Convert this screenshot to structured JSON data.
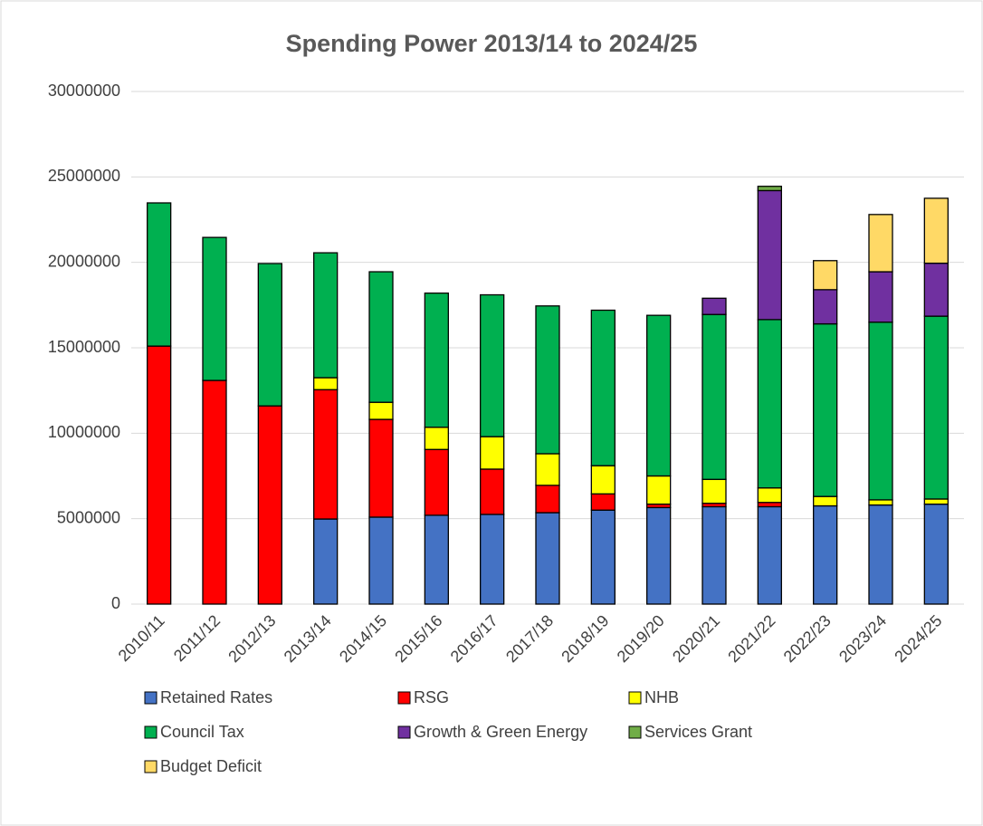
{
  "chart_data": {
    "type": "stacked_bar",
    "title": "Spending Power 2013/14 to 2024/25",
    "categories": [
      "2010/11",
      "2011/12",
      "2012/13",
      "2013/14",
      "2014/15",
      "2015/16",
      "2016/17",
      "2017/18",
      "2018/19",
      "2019/20",
      "2020/21",
      "2021/22",
      "2022/23",
      "2023/24",
      "2024/25"
    ],
    "series": [
      {
        "name": "Retained Rates",
        "color": "#4472c4",
        "values": [
          null,
          null,
          null,
          4980000,
          5090000,
          5200000,
          5250000,
          5350000,
          5500000,
          5650000,
          5700000,
          5700000,
          5750000,
          5800000,
          5850000
        ]
      },
      {
        "name": "RSG",
        "color": "#ff0000",
        "values": [
          15100000,
          13090000,
          11600000,
          7570000,
          5720000,
          3850000,
          2650000,
          1600000,
          950000,
          200000,
          200000,
          250000,
          null,
          null,
          null
        ]
      },
      {
        "name": "NHB",
        "color": "#ffff00",
        "values": [
          null,
          null,
          null,
          700000,
          1000000,
          1300000,
          1900000,
          1850000,
          1650000,
          1650000,
          1400000,
          850000,
          550000,
          300000,
          300000
        ]
      },
      {
        "name": "Council Tax",
        "color": "#00b050",
        "values": [
          8380000,
          8370000,
          8330000,
          7310000,
          7640000,
          7850000,
          8300000,
          8650000,
          9100000,
          9400000,
          9650000,
          9850000,
          10100000,
          10400000,
          10700000
        ]
      },
      {
        "name": "Growth & Green Energy",
        "color": "#7030a0",
        "values": [
          null,
          null,
          null,
          null,
          null,
          null,
          null,
          null,
          null,
          null,
          950000,
          7550000,
          2000000,
          2950000,
          3100000
        ]
      },
      {
        "name": "Services Grant",
        "color": "#70ad47",
        "values": [
          null,
          null,
          null,
          null,
          null,
          null,
          null,
          null,
          null,
          null,
          null,
          250000,
          null,
          null,
          null
        ]
      },
      {
        "name": "Budget Deficit",
        "color": "#ffd966",
        "values": [
          null,
          null,
          null,
          null,
          null,
          null,
          null,
          null,
          null,
          null,
          null,
          null,
          1700000,
          3350000,
          3800000
        ]
      }
    ],
    "ylim": [
      0,
      30000000
    ],
    "yticks": [
      0,
      5000000,
      10000000,
      15000000,
      20000000,
      25000000,
      30000000
    ],
    "grid": true,
    "legend": "bottom"
  }
}
